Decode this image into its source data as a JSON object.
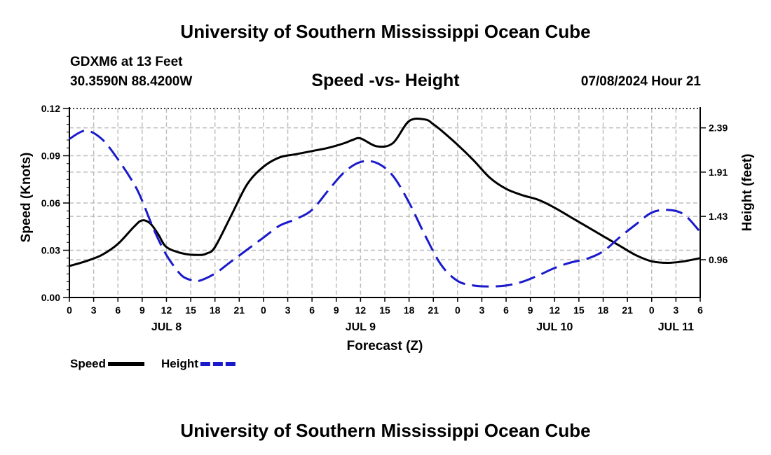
{
  "header": {
    "title_top": "University of Southern Mississippi Ocean Cube",
    "station": "GDXM6 at 13 Feet",
    "coords": "30.3590N  88.4200W",
    "subtitle": "Speed -vs- Height",
    "timestamp": "07/08/2024 Hour 21",
    "title_bottom": "University of Southern Mississippi Ocean Cube"
  },
  "chart_data": {
    "type": "line",
    "title": "Speed -vs- Height",
    "xlabel": "Forecast (Z)",
    "ylabel_left": "Speed (Knots)",
    "ylabel_right": "Height (feet)",
    "x_hours_range": [
      0,
      78
    ],
    "x_tick_labels": [
      "0",
      "3",
      "6",
      "9",
      "12",
      "15",
      "18",
      "21",
      "0",
      "3",
      "6",
      "9",
      "12",
      "15",
      "18",
      "21",
      "0",
      "3",
      "6",
      "9",
      "12",
      "15",
      "18",
      "21",
      "0",
      "3",
      "6"
    ],
    "day_labels": [
      {
        "label": "JUL 8",
        "hour": 12
      },
      {
        "label": "JUL 9",
        "hour": 36
      },
      {
        "label": "JUL 10",
        "hour": 60
      },
      {
        "label": "JUL 11",
        "hour": 75
      }
    ],
    "ylim_left": [
      0,
      0.12
    ],
    "yticks_left": [
      "0.00",
      "0.03",
      "0.06",
      "0.09",
      "0.12"
    ],
    "ylim_right": [
      0.55,
      2.6
    ],
    "yticks_right": [
      "0.96",
      "1.43",
      "1.91",
      "2.39"
    ],
    "grid": true,
    "legend": [
      {
        "name": "Speed",
        "color": "#000000",
        "style": "solid"
      },
      {
        "name": "Height",
        "color": "#1a1acc",
        "style": "dashed"
      }
    ],
    "series": [
      {
        "name": "Speed",
        "axis": "left",
        "color": "#000000",
        "x": [
          0,
          2,
          4,
          6,
          8,
          9,
          10,
          11,
          12,
          14,
          16,
          17,
          18,
          20,
          22,
          24,
          26,
          28,
          30,
          32,
          34,
          35,
          36,
          38,
          40,
          42,
          44,
          45,
          46,
          48,
          50,
          52,
          54,
          56,
          58,
          60,
          62,
          64,
          66,
          68,
          70,
          72,
          74,
          76,
          78
        ],
        "values": [
          0.02,
          0.023,
          0.027,
          0.034,
          0.045,
          0.049,
          0.047,
          0.04,
          0.032,
          0.028,
          0.027,
          0.028,
          0.032,
          0.052,
          0.072,
          0.083,
          0.089,
          0.091,
          0.093,
          0.095,
          0.098,
          0.1,
          0.101,
          0.096,
          0.098,
          0.112,
          0.113,
          0.11,
          0.106,
          0.097,
          0.087,
          0.076,
          0.069,
          0.065,
          0.062,
          0.057,
          0.051,
          0.045,
          0.039,
          0.033,
          0.027,
          0.023,
          0.022,
          0.023,
          0.025
        ]
      },
      {
        "name": "Height",
        "axis": "right",
        "color": "#1a1acc",
        "x": [
          0,
          2,
          4,
          6,
          8,
          9,
          10,
          11,
          12,
          13,
          14,
          15,
          16,
          18,
          20,
          22,
          24,
          26,
          28,
          30,
          32,
          34,
          36,
          38,
          40,
          42,
          44,
          46,
          48,
          50,
          52,
          54,
          56,
          58,
          60,
          62,
          64,
          66,
          68,
          70,
          72,
          74,
          76,
          78
        ],
        "values": [
          2.27,
          2.36,
          2.27,
          2.05,
          1.78,
          1.6,
          1.38,
          1.18,
          1.01,
          0.88,
          0.78,
          0.74,
          0.73,
          0.81,
          0.94,
          1.07,
          1.2,
          1.33,
          1.4,
          1.5,
          1.71,
          1.91,
          2.02,
          2.01,
          1.87,
          1.58,
          1.22,
          0.9,
          0.73,
          0.68,
          0.67,
          0.68,
          0.72,
          0.79,
          0.87,
          0.93,
          0.97,
          1.05,
          1.2,
          1.34,
          1.47,
          1.5,
          1.45,
          1.26
        ]
      }
    ]
  }
}
